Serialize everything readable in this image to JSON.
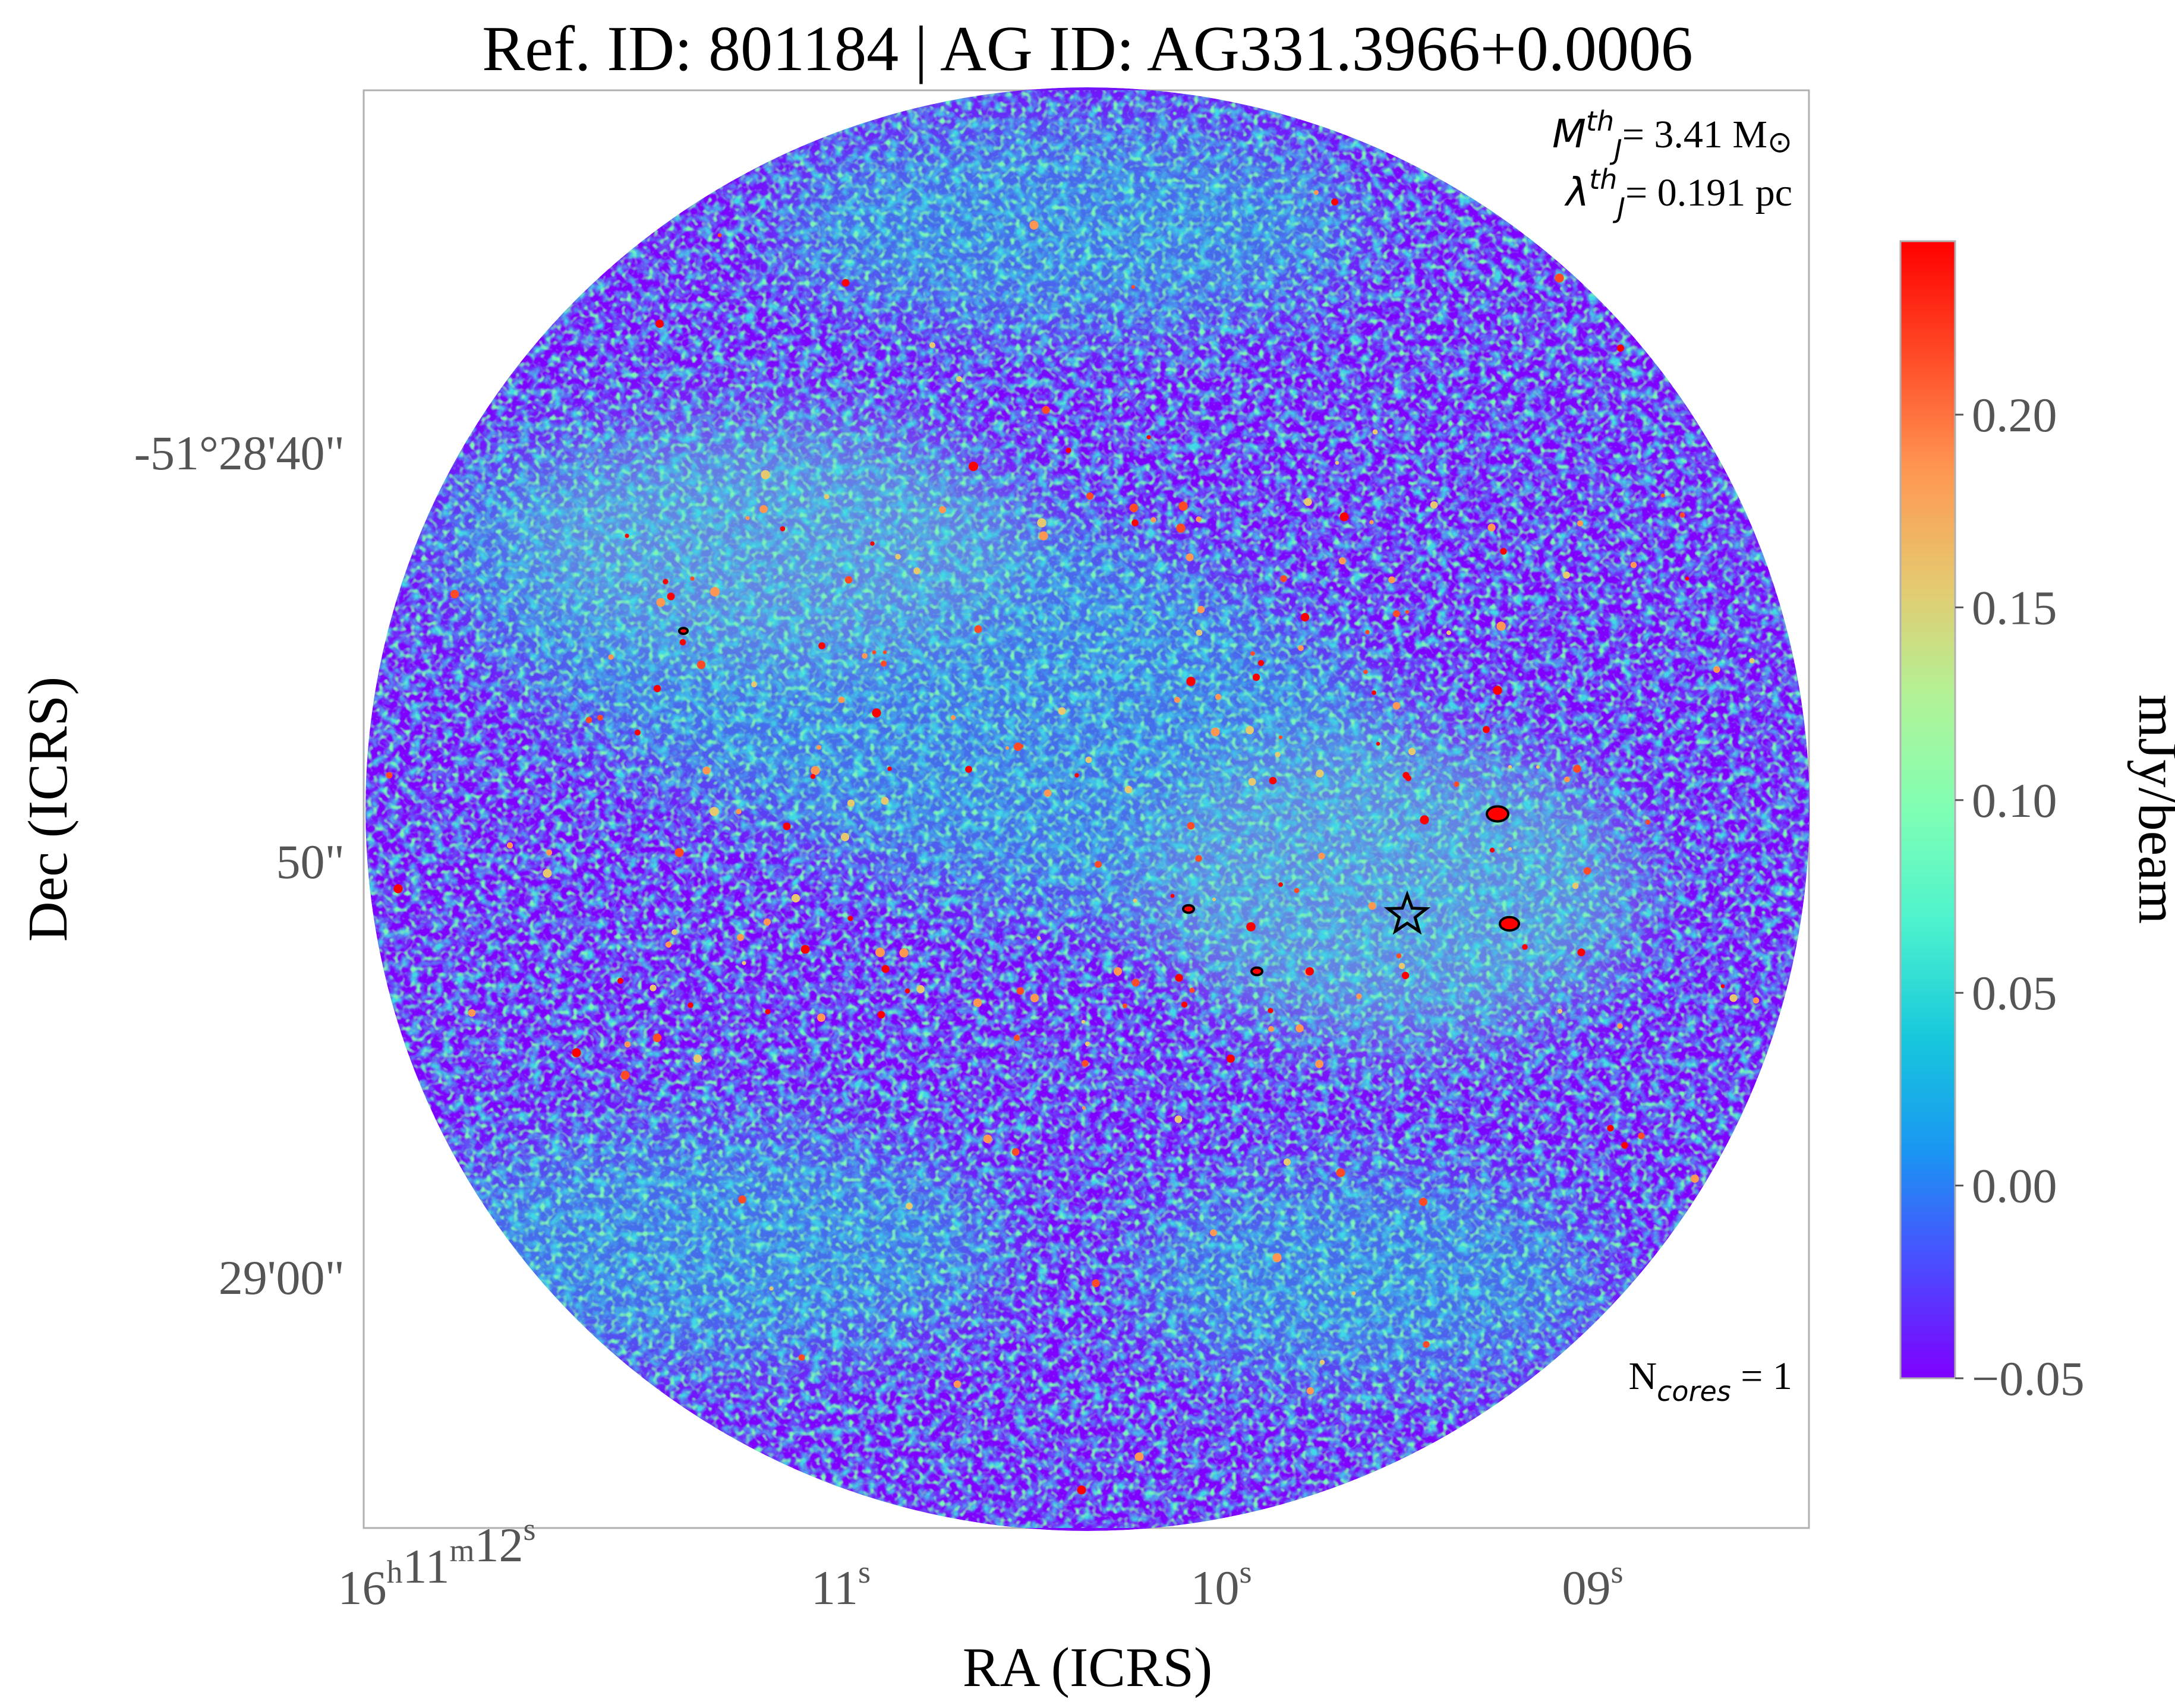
{
  "chart_data": {
    "type": "heatmap",
    "title": "Ref. ID: 801184 | AG ID: AG331.3966+0.0006",
    "xlabel": "RA (ICRS)",
    "ylabel": "Dec (ICRS)",
    "x_ticks": [
      {
        "value": "16h11m12s",
        "parts": [
          {
            "t": "16"
          },
          {
            "t": "h",
            "sup": true
          },
          {
            "t": "11"
          },
          {
            "t": "m",
            "sup": true
          },
          {
            "t": "12"
          },
          {
            "t": "s",
            "sup": true
          }
        ]
      },
      {
        "value": "11s",
        "parts": [
          {
            "t": "11"
          },
          {
            "t": "s",
            "sup": true
          }
        ]
      },
      {
        "value": "10s",
        "parts": [
          {
            "t": "10"
          },
          {
            "t": "s",
            "sup": true
          }
        ]
      },
      {
        "value": "09s",
        "parts": [
          {
            "t": "09"
          },
          {
            "t": "s",
            "sup": true
          }
        ]
      }
    ],
    "y_ticks": [
      "-51°28'40\"",
      "50\"",
      "29'00\""
    ],
    "colorbar": {
      "label": "mJy/beam",
      "colormap": "rainbow",
      "range": [
        -0.05,
        0.245
      ],
      "ticks": [
        {
          "value": 0.2,
          "label": "0.20"
        },
        {
          "value": 0.15,
          "label": "0.15"
        },
        {
          "value": 0.1,
          "label": "0.10"
        },
        {
          "value": 0.05,
          "label": "0.05"
        },
        {
          "value": 0.0,
          "label": "0.00"
        },
        {
          "value": -0.05,
          "label": "−0.05"
        }
      ],
      "colors": [
        "#7f00ff",
        "#4b4cff",
        "#1a96f2",
        "#17c8dc",
        "#4cf2ce",
        "#80ffb4",
        "#b2f296",
        "#e6c86e",
        "#ff9652",
        "#ff4a26",
        "#ff0000"
      ]
    },
    "annotations": {
      "mass": {
        "symbol": "M",
        "sub": "J",
        "sup": "th",
        "value": "= 3.41 M",
        "unit": "⊙"
      },
      "length": {
        "symbol": "λ",
        "sub": "J",
        "sup": "th",
        "value": "= 0.191 pc"
      },
      "ncores": {
        "prefix": "N",
        "sub": "cores",
        "value": " = 1"
      }
    },
    "grid": false,
    "marker": "star",
    "cores": 1
  }
}
